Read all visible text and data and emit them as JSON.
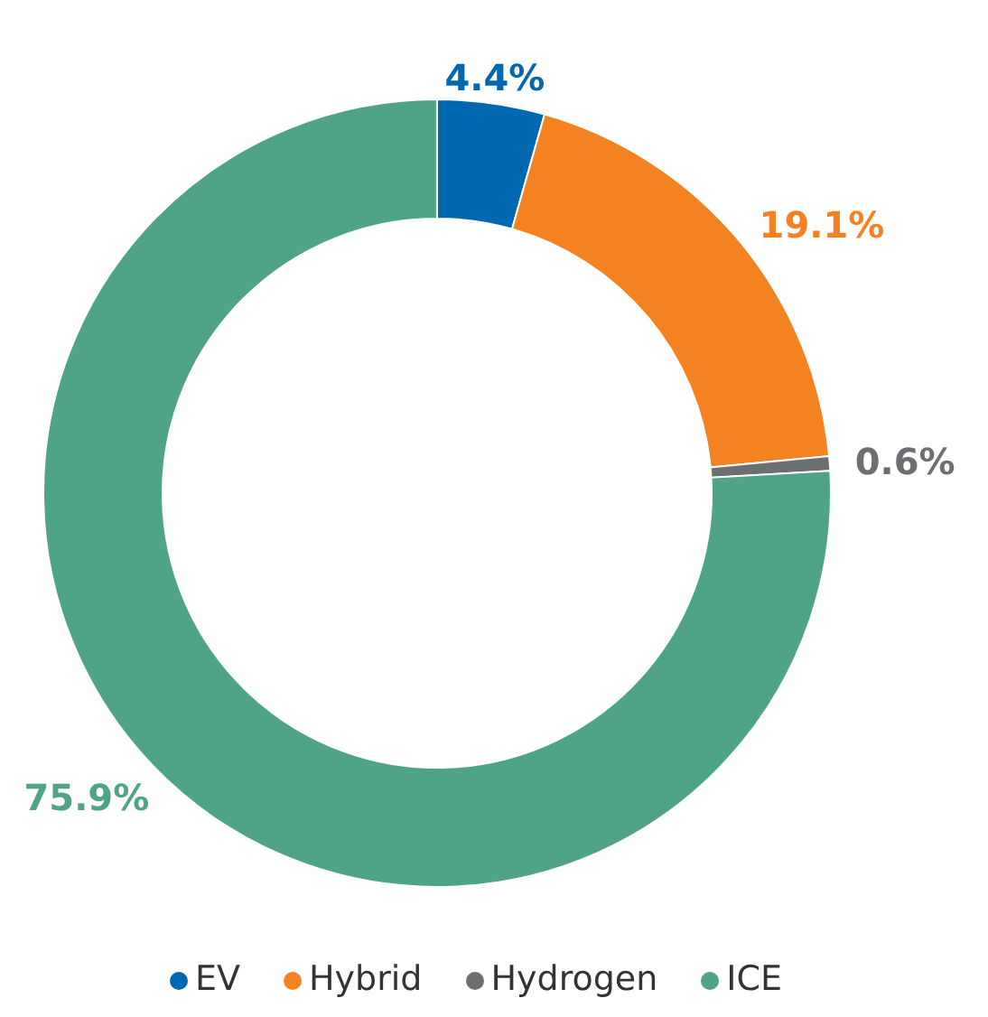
{
  "chart_data": {
    "type": "donut",
    "categories": [
      "EV",
      "Hybrid",
      "Hydrogen",
      "ICE"
    ],
    "values": [
      4.4,
      19.1,
      0.6,
      75.9
    ],
    "colors": [
      "#0067b1",
      "#f58220",
      "#6d6e71",
      "#4fa387"
    ],
    "value_labels": [
      "4.4%",
      "19.1%",
      "0.6%",
      "75.9%"
    ],
    "legend": "bottom"
  }
}
